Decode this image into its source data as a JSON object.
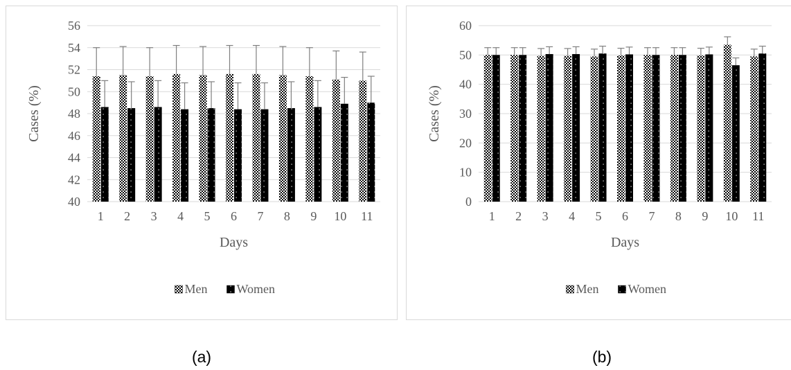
{
  "colors": {
    "grid": "#d9d9d9",
    "text": "#595959",
    "errorbar": "#7f7f7f",
    "bar": "#000000"
  },
  "chart_data": [
    {
      "id": "a",
      "type": "bar",
      "caption": "(a)",
      "xlabel": "Days",
      "ylabel": "Cases (%)",
      "categories": [
        "1",
        "2",
        "3",
        "4",
        "5",
        "6",
        "7",
        "8",
        "9",
        "10",
        "11"
      ],
      "ylim": [
        40,
        56
      ],
      "yticks": [
        "40",
        "42",
        "44",
        "46",
        "48",
        "50",
        "52",
        "54",
        "56"
      ],
      "grid": true,
      "legend_position": "bottom",
      "series": [
        {
          "name": "Men",
          "pattern": "checker",
          "values": [
            51.4,
            51.5,
            51.4,
            51.6,
            51.5,
            51.6,
            51.6,
            51.5,
            51.4,
            51.1,
            51.0
          ],
          "error": [
            2.6,
            2.6,
            2.6,
            2.6,
            2.6,
            2.6,
            2.6,
            2.6,
            2.6,
            2.6,
            2.6
          ]
        },
        {
          "name": "Women",
          "pattern": "dots",
          "values": [
            48.6,
            48.5,
            48.6,
            48.4,
            48.5,
            48.4,
            48.4,
            48.5,
            48.6,
            48.9,
            49.0
          ],
          "error": [
            2.4,
            2.4,
            2.4,
            2.4,
            2.4,
            2.4,
            2.4,
            2.4,
            2.4,
            2.4,
            2.4
          ]
        }
      ]
    },
    {
      "id": "b",
      "type": "bar",
      "caption": "(b)",
      "xlabel": "Days",
      "ylabel": "Cases (%)",
      "categories": [
        "1",
        "2",
        "3",
        "4",
        "5",
        "6",
        "7",
        "8",
        "9",
        "10",
        "11"
      ],
      "ylim": [
        0,
        60
      ],
      "yticks": [
        "0",
        "10",
        "20",
        "30",
        "40",
        "50",
        "60"
      ],
      "grid": true,
      "legend_position": "bottom",
      "series": [
        {
          "name": "Men",
          "pattern": "checker",
          "values": [
            50.0,
            50.0,
            49.7,
            49.7,
            49.5,
            49.8,
            50.0,
            50.0,
            49.8,
            53.5,
            49.5
          ],
          "error": [
            2.5,
            2.5,
            2.5,
            2.5,
            2.5,
            2.5,
            2.5,
            2.5,
            2.5,
            2.7,
            2.5
          ]
        },
        {
          "name": "Women",
          "pattern": "dots",
          "values": [
            50.0,
            50.0,
            50.3,
            50.3,
            50.5,
            50.2,
            50.0,
            50.0,
            50.2,
            46.5,
            50.5
          ],
          "error": [
            2.5,
            2.5,
            2.5,
            2.5,
            2.5,
            2.5,
            2.5,
            2.5,
            2.5,
            2.5,
            2.5
          ]
        }
      ]
    }
  ]
}
